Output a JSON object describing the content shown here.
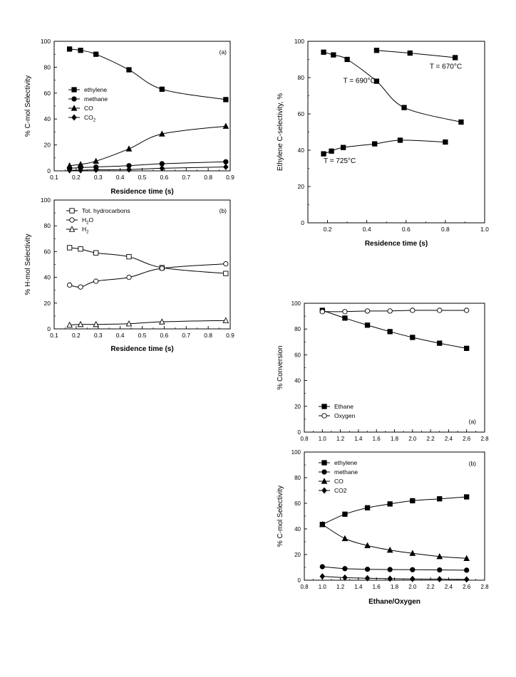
{
  "chart_data": [
    {
      "id": "p1",
      "type": "line",
      "panel_label": "(a)",
      "xlabel": "Residence time (s)",
      "ylabel": "% C-mol Selectivity",
      "xlim": [
        0.1,
        0.9
      ],
      "ylim": [
        0,
        100
      ],
      "xticks": [
        0.1,
        0.2,
        0.3,
        0.4,
        0.5,
        0.6,
        0.7,
        0.8,
        0.9
      ],
      "yticks": [
        0,
        20,
        40,
        60,
        80,
        100
      ],
      "legend_position": "middle-left",
      "series": [
        {
          "name": "ethylene",
          "marker": "square-filled",
          "points": [
            [
              0.17,
              94
            ],
            [
              0.22,
              93
            ],
            [
              0.29,
              90
            ],
            [
              0.44,
              78
            ],
            [
              0.59,
              63
            ],
            [
              0.88,
              55
            ]
          ]
        },
        {
          "name": "methane",
          "marker": "circle-filled",
          "points": [
            [
              0.17,
              2
            ],
            [
              0.22,
              2.5
            ],
            [
              0.29,
              3
            ],
            [
              0.44,
              4
            ],
            [
              0.59,
              5.5
            ],
            [
              0.88,
              7
            ]
          ]
        },
        {
          "name": "CO",
          "marker": "triangle-filled",
          "points": [
            [
              0.17,
              4
            ],
            [
              0.22,
              5
            ],
            [
              0.29,
              7.5
            ],
            [
              0.44,
              17
            ],
            [
              0.59,
              28.5
            ],
            [
              0.88,
              34.5
            ]
          ]
        },
        {
          "name": "CO",
          "subscript": "2",
          "marker": "diamond-filled",
          "points": [
            [
              0.17,
              0.5
            ],
            [
              0.22,
              0.5
            ],
            [
              0.29,
              0.8
            ],
            [
              0.44,
              1
            ],
            [
              0.59,
              2
            ],
            [
              0.88,
              3
            ]
          ]
        }
      ]
    },
    {
      "id": "p2",
      "type": "line",
      "panel_label": "(b)",
      "xlabel": "Residence time (s)",
      "ylabel": "% H-mol Selectivity",
      "xlim": [
        0.1,
        0.9
      ],
      "ylim": [
        0,
        100
      ],
      "xticks": [
        0.1,
        0.2,
        0.3,
        0.4,
        0.5,
        0.6,
        0.7,
        0.8,
        0.9
      ],
      "yticks": [
        0,
        20,
        40,
        60,
        80,
        100
      ],
      "legend_position": "top-left",
      "series": [
        {
          "name": "Tot. hydrocarbons",
          "marker": "square-open",
          "points": [
            [
              0.17,
              63
            ],
            [
              0.22,
              62
            ],
            [
              0.29,
              59
            ],
            [
              0.44,
              56
            ],
            [
              0.59,
              47.5
            ],
            [
              0.88,
              43
            ]
          ]
        },
        {
          "name": "H",
          "subscript": "2",
          "tail": "O",
          "marker": "circle-open",
          "points": [
            [
              0.17,
              34
            ],
            [
              0.22,
              32.5
            ],
            [
              0.29,
              37
            ],
            [
              0.44,
              40
            ],
            [
              0.59,
              47
            ],
            [
              0.88,
              50.5
            ]
          ]
        },
        {
          "name": "H",
          "subscript": "2",
          "marker": "triangle-open",
          "points": [
            [
              0.17,
              3
            ],
            [
              0.22,
              3.5
            ],
            [
              0.29,
              3.5
            ],
            [
              0.44,
              4
            ],
            [
              0.59,
              5.5
            ],
            [
              0.88,
              6.5
            ]
          ]
        }
      ]
    },
    {
      "id": "p3",
      "type": "line",
      "xlabel": "Residence time (s)",
      "ylabel": "Ethylene C-selectivity, %",
      "xlim": [
        0.1,
        1.0
      ],
      "ylim": [
        0,
        100
      ],
      "xticks": [
        0.2,
        0.4,
        0.6,
        0.8,
        1.0
      ],
      "yticks": [
        0,
        20,
        40,
        60,
        80,
        100
      ],
      "annotations": [
        {
          "text": "T = 670°C",
          "x": 0.72,
          "y": 85
        },
        {
          "text": "T = 690°C",
          "x": 0.28,
          "y": 77
        },
        {
          "text": "T = 725°C",
          "x": 0.18,
          "y": 33
        }
      ],
      "series": [
        {
          "name": "T = 670°C",
          "marker": "square-filled",
          "points": [
            [
              0.45,
              95
            ],
            [
              0.62,
              93.5
            ],
            [
              0.85,
              91
            ]
          ]
        },
        {
          "name": "T = 690°C",
          "marker": "square-filled",
          "points": [
            [
              0.18,
              94
            ],
            [
              0.23,
              92.5
            ],
            [
              0.3,
              90
            ],
            [
              0.45,
              78
            ],
            [
              0.59,
              63.5
            ],
            [
              0.88,
              55.5
            ]
          ]
        },
        {
          "name": "T = 725°C",
          "marker": "square-filled",
          "points": [
            [
              0.18,
              38
            ],
            [
              0.22,
              39.5
            ],
            [
              0.28,
              41.5
            ],
            [
              0.44,
              43.5
            ],
            [
              0.57,
              45.5
            ],
            [
              0.8,
              44.5
            ]
          ]
        }
      ]
    },
    {
      "id": "p4",
      "type": "line",
      "panel_label": "(a)",
      "xlabel": "",
      "ylabel": "% Conversion",
      "xlim": [
        0.8,
        2.8
      ],
      "ylim": [
        0,
        100
      ],
      "xticks": [
        0.8,
        1.0,
        1.2,
        1.4,
        1.6,
        1.8,
        2.0,
        2.2,
        2.4,
        2.6,
        2.8
      ],
      "yticks": [
        0,
        20,
        40,
        60,
        80,
        100
      ],
      "legend_position": "bottom-left",
      "series": [
        {
          "name": "Ethane",
          "marker": "square-filled",
          "points": [
            [
              1.0,
              94.5
            ],
            [
              1.25,
              88.5
            ],
            [
              1.5,
              83
            ],
            [
              1.75,
              78
            ],
            [
              2.0,
              73.5
            ],
            [
              2.3,
              69
            ],
            [
              2.6,
              65
            ]
          ]
        },
        {
          "name": "Oxygen",
          "marker": "circle-open",
          "points": [
            [
              1.0,
              93.5
            ],
            [
              1.25,
              93.5
            ],
            [
              1.5,
              94
            ],
            [
              1.75,
              94
            ],
            [
              2.0,
              94.5
            ],
            [
              2.3,
              94.5
            ],
            [
              2.6,
              94.5
            ]
          ]
        }
      ]
    },
    {
      "id": "p5",
      "type": "line",
      "panel_label": "(b)",
      "xlabel": "Ethane/Oxygen",
      "ylabel": "% C-mol Selectivity",
      "xlim": [
        0.8,
        2.8
      ],
      "ylim": [
        0,
        100
      ],
      "xticks": [
        0.8,
        1.0,
        1.2,
        1.4,
        1.6,
        1.8,
        2.0,
        2.2,
        2.4,
        2.6,
        2.8
      ],
      "yticks": [
        0,
        20,
        40,
        60,
        80,
        100
      ],
      "legend_position": "top-left",
      "series": [
        {
          "name": "ethylene",
          "marker": "square-filled",
          "points": [
            [
              1.0,
              43.5
            ],
            [
              1.25,
              51.5
            ],
            [
              1.5,
              56.5
            ],
            [
              1.75,
              59.5
            ],
            [
              2.0,
              62
            ],
            [
              2.3,
              63.5
            ],
            [
              2.6,
              65
            ]
          ]
        },
        {
          "name": "methane",
          "marker": "circle-filled",
          "points": [
            [
              1.0,
              10.5
            ],
            [
              1.25,
              9
            ],
            [
              1.5,
              8.5
            ],
            [
              1.75,
              8.3
            ],
            [
              2.0,
              8.2
            ],
            [
              2.3,
              8
            ],
            [
              2.6,
              7.8
            ]
          ]
        },
        {
          "name": "CO",
          "marker": "triangle-filled",
          "points": [
            [
              1.0,
              43.5
            ],
            [
              1.25,
              32.5
            ],
            [
              1.5,
              27
            ],
            [
              1.75,
              23.5
            ],
            [
              2.0,
              21
            ],
            [
              2.3,
              18.5
            ],
            [
              2.6,
              17
            ]
          ]
        },
        {
          "name": "CO2",
          "marker": "diamond-filled",
          "points": [
            [
              1.0,
              3
            ],
            [
              1.25,
              2
            ],
            [
              1.5,
              1.5
            ],
            [
              1.75,
              1.2
            ],
            [
              2.0,
              1
            ],
            [
              2.3,
              0.8
            ],
            [
              2.6,
              0.6
            ]
          ]
        }
      ]
    }
  ]
}
